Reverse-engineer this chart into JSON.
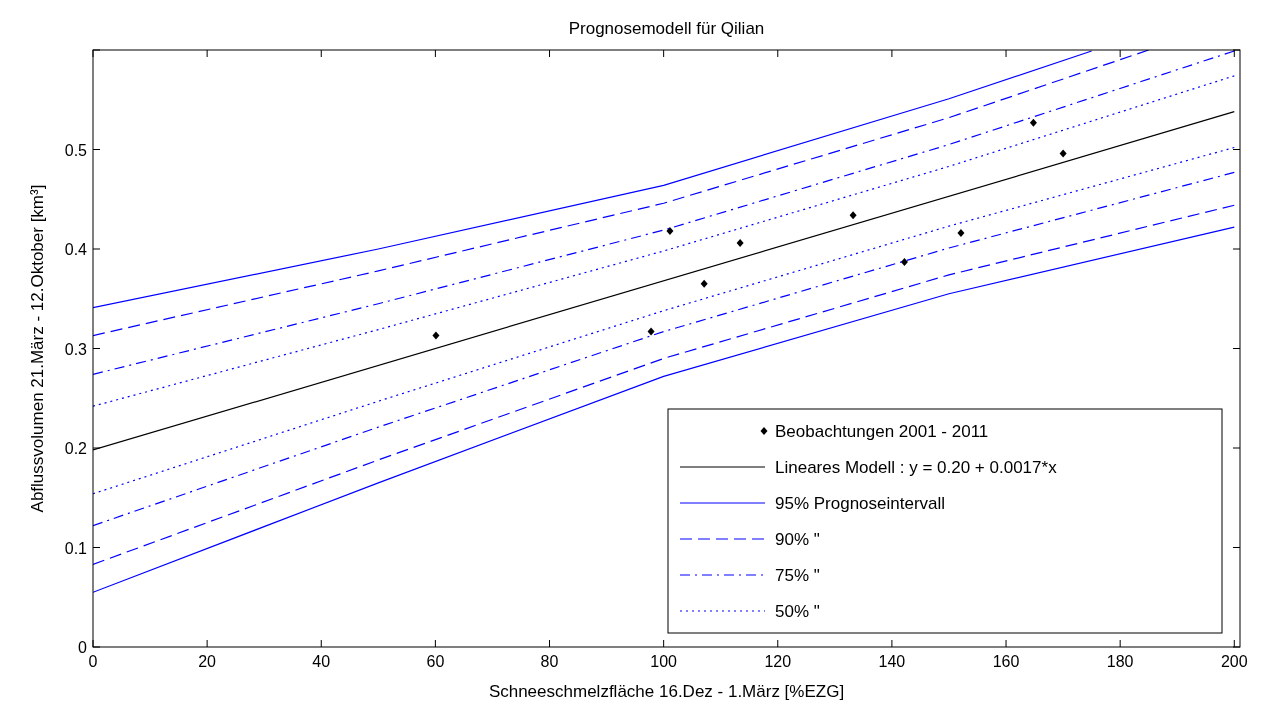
{
  "chart_data": {
    "type": "line",
    "title": "Prognosemodell für Qilian",
    "xlabel": "Schneeschmelzfläche 16.Dez - 1.März [%EZG]",
    "ylabel": "Abflussvolumen 21.März - 12.Oktober [km³]",
    "xlim": [
      0,
      201
    ],
    "ylim": [
      0,
      0.6
    ],
    "xticks": [
      0,
      20,
      40,
      60,
      80,
      100,
      120,
      140,
      160,
      180,
      200
    ],
    "yticks": [
      0,
      0.1,
      0.2,
      0.3,
      0.4,
      0.5,
      {
        "value": 0.6,
        "label": null
      }
    ],
    "grid": false,
    "legend": "bottom right",
    "series": [
      {
        "name": "Beobachtungen 2001 - 2011",
        "type": "scatter",
        "marker": "diamond",
        "color": "#000000",
        "x": [
          60.1,
          97.8,
          101.1,
          107.1,
          113.4,
          133.2,
          142.2,
          152.1,
          164.8,
          170.0
        ],
        "values": [
          0.313,
          0.317,
          0.418,
          0.365,
          0.406,
          0.434,
          0.387,
          0.416,
          0.527,
          0.496
        ]
      },
      {
        "name": "Lineares Modell : y = 0.20 + 0.0017*x",
        "color": "#000000",
        "line_style": "solid",
        "x": [
          0,
          200
        ],
        "values": [
          0.198,
          0.538
        ]
      },
      {
        "name": "95% Prognoseintervall",
        "color": "#0000ff",
        "line_style": "solid",
        "x": [
          0,
          50,
          100,
          150,
          175
        ],
        "values": [
          0.341,
          0.4,
          0.464,
          0.551,
          0.599
        ]
      },
      {
        "color": "#0000ff",
        "line_style": "solid",
        "x": [
          0,
          50,
          100,
          150,
          200
        ],
        "values": [
          0.055,
          0.165,
          0.272,
          0.355,
          0.422
        ]
      },
      {
        "name": "90% \"",
        "color": "#0000ff",
        "line_style": "dashed",
        "x": [
          0,
          50,
          100,
          150,
          185
        ],
        "values": [
          0.313,
          0.378,
          0.446,
          0.532,
          0.6
        ]
      },
      {
        "color": "#0000ff",
        "line_style": "dashed",
        "x": [
          0,
          50,
          100,
          150,
          200
        ],
        "values": [
          0.083,
          0.188,
          0.29,
          0.374,
          0.444
        ]
      },
      {
        "name": "75% \"",
        "color": "#0000ff",
        "line_style": "dashdot",
        "x": [
          0,
          50,
          100,
          150,
          200
        ],
        "values": [
          0.274,
          0.345,
          0.419,
          0.505,
          0.599
        ]
      },
      {
        "color": "#0000ff",
        "line_style": "dashdot",
        "x": [
          0,
          50,
          100,
          150,
          200
        ],
        "values": [
          0.122,
          0.221,
          0.317,
          0.401,
          0.477
        ]
      },
      {
        "name": "50% \"",
        "color": "#0000ff",
        "line_style": "dotted",
        "x": [
          0,
          50,
          100,
          150,
          200
        ],
        "values": [
          0.242,
          0.319,
          0.398,
          0.483,
          0.574
        ]
      },
      {
        "color": "#0000ff",
        "line_style": "dotted",
        "x": [
          0,
          50,
          100,
          150,
          200
        ],
        "values": [
          0.154,
          0.247,
          0.338,
          0.423,
          0.502
        ]
      }
    ]
  }
}
